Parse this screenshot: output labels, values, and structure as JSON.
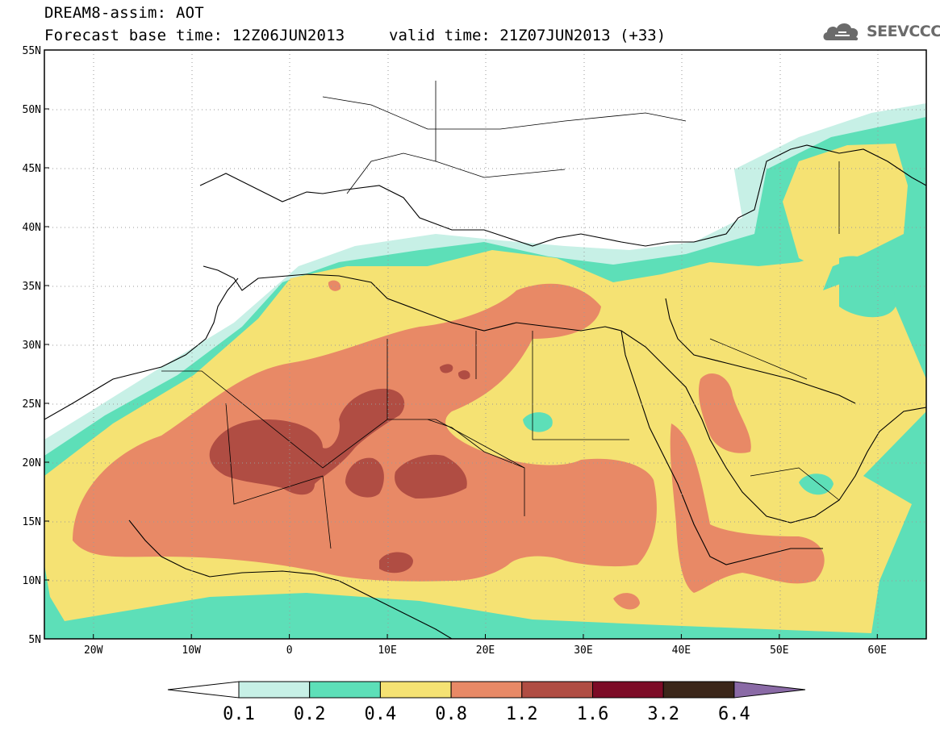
{
  "header": {
    "title_line1": "DREAM8-assim: AOT",
    "title_line2": "Forecast base time: 12Z06JUN2013",
    "valid_time": "valid time: 21Z07JUN2013 (+33)",
    "logo_text": "SEEVCCC",
    "logo_icon": "cloud-icon"
  },
  "map": {
    "lat_labels": [
      "55N",
      "50N",
      "45N",
      "40N",
      "35N",
      "30N",
      "25N",
      "20N",
      "15N",
      "10N",
      "5N"
    ],
    "lon_labels": [
      "20W",
      "10W",
      "0",
      "10E",
      "20E",
      "30E",
      "40E",
      "50E",
      "60E"
    ],
    "lat_range": [
      5,
      55
    ],
    "lon_range": [
      -25,
      65
    ],
    "gridlines": true,
    "gridline_style": "dotted"
  },
  "colorbar": {
    "labels": [
      "0.1",
      "0.2",
      "0.4",
      "0.8",
      "1.2",
      "1.6",
      "3.2",
      "6.4"
    ],
    "colors": [
      "#ffffff",
      "#c7f0e6",
      "#5ddfb8",
      "#f5e273",
      "#e88966",
      "#b04d43",
      "#7c0b26",
      "#3b2619",
      "#8a6aa6"
    ]
  },
  "colors": {
    "c01": "#c7f0e6",
    "c02": "#5ddfb8",
    "c04": "#f5e273",
    "c08": "#e88966",
    "c12": "#b04d43"
  }
}
